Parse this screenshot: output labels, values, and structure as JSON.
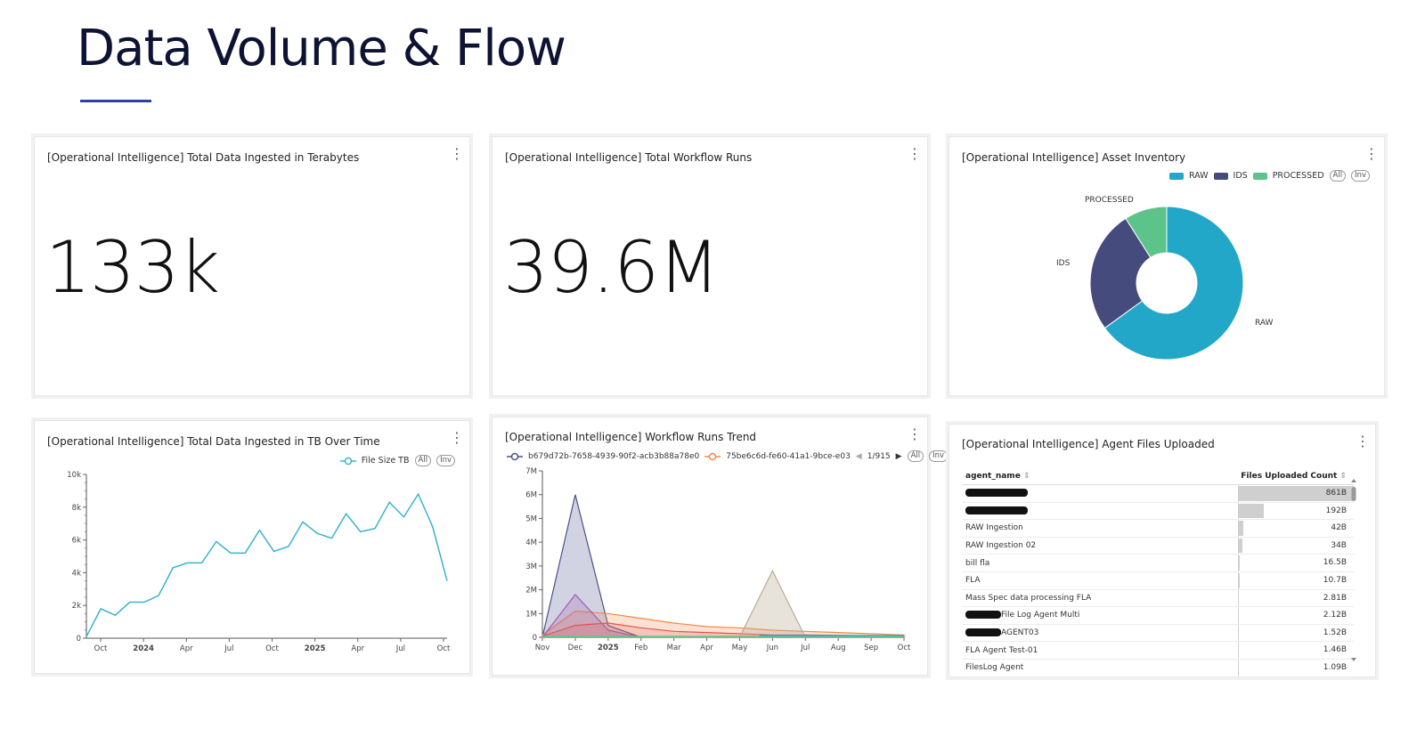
{
  "page": {
    "title": "Data Volume & Flow"
  },
  "cards": {
    "total_ingested": {
      "title": "[Operational Intelligence] Total Data Ingested in Terabytes",
      "value": "133k"
    },
    "workflow_runs": {
      "title": "[Operational Intelligence] Total Workflow Runs",
      "value": "39.6M"
    },
    "asset_inventory": {
      "title": "[Operational Intelligence] Asset Inventory",
      "legend": [
        "RAW",
        "IDS",
        "PROCESSED"
      ],
      "pill_all": "All",
      "pill_inv": "Inv",
      "slice_labels": {
        "processed": "PROCESSED",
        "ids": "IDS",
        "raw": "RAW"
      }
    },
    "ingested_over_time": {
      "title": "[Operational Intelligence] Total Data Ingested in TB Over Time",
      "legend": "File Size TB",
      "pill_all": "All",
      "pill_inv": "Inv"
    },
    "workflow_trend": {
      "title": "[Operational Intelligence] Workflow Runs Trend",
      "legend_1": "b679d72b-7658-4939-90f2-acb3b88a78e0",
      "legend_2": "75be6c6d-fe60-41a1-9bce-e03",
      "pager": "1/915",
      "pill_all": "All",
      "pill_inv": "Inv"
    },
    "agent_files": {
      "title": "[Operational Intelligence] Agent Files Uploaded",
      "col_agent": "agent_name",
      "col_count": "Files Uploaded Count",
      "rows": [
        {
          "name": "",
          "value": "861B",
          "redacted": true,
          "fraction": 1.0
        },
        {
          "name": "",
          "value": "192B",
          "redacted": true,
          "fraction": 0.223
        },
        {
          "name": "RAW Ingestion",
          "value": "42B",
          "fraction": 0.049
        },
        {
          "name": "RAW Ingestion 02",
          "value": "34B",
          "fraction": 0.04
        },
        {
          "name": "bill fla",
          "value": "16.5B",
          "fraction": 0.019
        },
        {
          "name": "FLA",
          "value": "10.7B",
          "fraction": 0.012
        },
        {
          "name": "Mass Spec data processing FLA",
          "value": "2.81B",
          "fraction": 0.003
        },
        {
          "name": "File Log Agent Multi",
          "value": "2.12B",
          "redacted_prefix": true,
          "fraction": 0.002
        },
        {
          "name": "AGENT03",
          "value": "1.52B",
          "redacted_prefix": true,
          "fraction": 0.002
        },
        {
          "name": "FLA Agent Test-01",
          "value": "1.46B",
          "fraction": 0.002
        },
        {
          "name": "FilesLog Agent",
          "value": "1.09B",
          "fraction": 0.001
        }
      ]
    }
  },
  "colors": {
    "raw": "#22a7c9",
    "ids": "#454b7c",
    "processed": "#5cc48a",
    "line": "#3bb3cf",
    "accent": "#2f3fa8"
  },
  "chart_data": [
    {
      "type": "pie",
      "title": "[Operational Intelligence] Asset Inventory",
      "categories": [
        "RAW",
        "IDS",
        "PROCESSED"
      ],
      "values": [
        65,
        26,
        9
      ]
    },
    {
      "type": "line",
      "title": "[Operational Intelligence] Total Data Ingested in TB Over Time",
      "series": [
        {
          "name": "File Size TB",
          "values": [
            100,
            1800,
            1400,
            2200,
            2200,
            2600,
            4300,
            4600,
            4600,
            5900,
            5200,
            5200,
            6600,
            5300,
            5600,
            7100,
            6400,
            6100,
            7600,
            6500,
            6700,
            8300,
            7400,
            8800,
            6800,
            3500
          ]
        }
      ],
      "x_ticks": [
        "Oct",
        "2024",
        "Apr",
        "Jul",
        "Oct",
        "2025",
        "Apr",
        "Jul",
        "Oct"
      ],
      "y_ticks": [
        "0",
        "2k",
        "4k",
        "6k",
        "8k",
        "10k"
      ],
      "ylim": [
        0,
        10000
      ]
    },
    {
      "type": "area",
      "title": "[Operational Intelligence] Workflow Runs Trend",
      "x_ticks": [
        "Nov",
        "Dec",
        "2025",
        "Feb",
        "Mar",
        "Apr",
        "May",
        "Jun",
        "Jul",
        "Aug",
        "Sep",
        "Oct"
      ],
      "y_ticks": [
        "0",
        "1M",
        "2M",
        "3M",
        "4M",
        "5M",
        "6M",
        "7M"
      ],
      "ylim": [
        0,
        7000000
      ],
      "series": [
        {
          "name": "b679d72b-7658-4939-90f2-acb3b88a78e0",
          "values": [
            0,
            6000000,
            500000,
            0,
            0,
            0,
            0,
            0,
            0,
            0,
            0,
            0
          ]
        },
        {
          "name": "75be6c6d-fe60-41a1-9bce-e03",
          "values": [
            100000,
            1100000,
            1000000,
            800000,
            600000,
            450000,
            400000,
            300000,
            250000,
            200000,
            150000,
            100000
          ]
        },
        {
          "name": "series-purple",
          "values": [
            0,
            1800000,
            300000,
            0,
            0,
            0,
            0,
            0,
            0,
            0,
            0,
            0
          ]
        },
        {
          "name": "series-red",
          "values": [
            50000,
            500000,
            600000,
            400000,
            250000,
            200000,
            150000,
            100000,
            100000,
            80000,
            60000,
            50000
          ]
        },
        {
          "name": "series-tan",
          "values": [
            0,
            0,
            0,
            0,
            0,
            0,
            0,
            2800000,
            0,
            0,
            0,
            0
          ]
        }
      ]
    }
  ]
}
